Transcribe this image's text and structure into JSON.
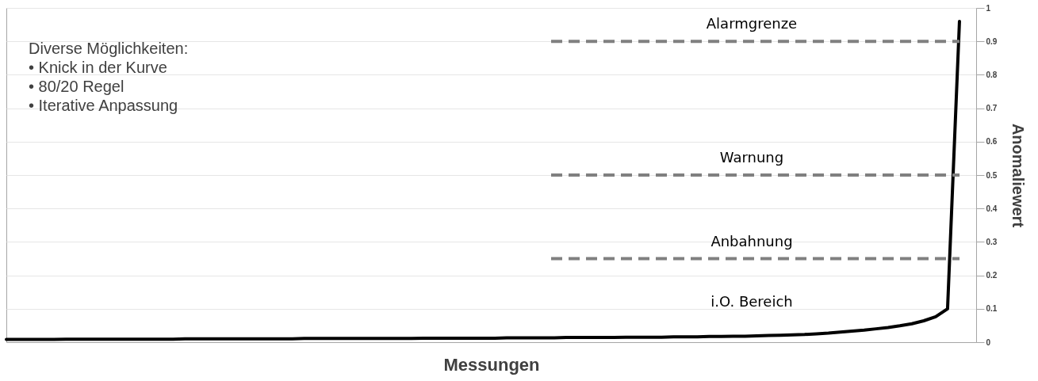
{
  "chart_data": {
    "type": "line",
    "xlabel": "Messungen",
    "ylabel": "Anomaliewert",
    "categories": [
      null,
      null,
      null,
      null,
      null,
      null,
      null,
      null,
      null,
      null,
      null,
      null,
      null,
      null,
      null,
      null,
      null,
      null,
      null,
      null,
      null,
      null,
      null,
      null,
      null,
      null,
      null,
      null,
      null,
      null,
      null,
      null,
      null,
      null,
      null,
      null,
      null,
      null,
      null,
      null,
      null,
      null,
      null,
      null,
      null,
      null,
      null,
      null,
      null,
      null,
      null,
      null,
      null,
      null,
      null,
      null,
      null,
      null,
      null,
      null,
      null,
      null,
      null,
      null,
      null,
      null,
      null,
      null,
      null,
      null,
      null,
      null,
      null,
      null,
      null,
      null,
      null,
      null,
      null,
      null,
      null
    ],
    "series": [
      {
        "color": "#000000",
        "values": [
          0.008,
          0.008,
          0.008,
          0.008,
          0.008,
          0.009,
          0.009,
          0.009,
          0.009,
          0.009,
          0.009,
          0.009,
          0.009,
          0.009,
          0.009,
          0.01,
          0.01,
          0.01,
          0.01,
          0.01,
          0.01,
          0.01,
          0.01,
          0.01,
          0.01,
          0.011,
          0.011,
          0.011,
          0.011,
          0.011,
          0.011,
          0.011,
          0.011,
          0.011,
          0.011,
          0.012,
          0.012,
          0.012,
          0.012,
          0.012,
          0.012,
          0.012,
          0.013,
          0.013,
          0.013,
          0.013,
          0.013,
          0.014,
          0.014,
          0.014,
          0.014,
          0.014,
          0.015,
          0.015,
          0.015,
          0.015,
          0.016,
          0.016,
          0.016,
          0.017,
          0.017,
          0.018,
          0.018,
          0.019,
          0.02,
          0.021,
          0.022,
          0.023,
          0.025,
          0.027,
          0.03,
          0.033,
          0.036,
          0.04,
          0.044,
          0.049,
          0.055,
          0.064,
          0.076,
          0.1,
          0.96
        ]
      }
    ],
    "ylim": [
      0,
      1
    ],
    "yticks": [
      0,
      0.1,
      0.2,
      0.3,
      0.4,
      0.5,
      0.6,
      0.7,
      0.8,
      0.9,
      1
    ],
    "grid": "y",
    "tick_labels": "y",
    "marker": "none",
    "line_style": "solid",
    "ref_lines": [
      {
        "axis": "y",
        "value": 0.9,
        "label": "Alarmgrenze",
        "color": "#808080",
        "line_style": "dashed"
      },
      {
        "axis": "y",
        "value": 0.5,
        "label": "Warnung",
        "color": "#808080",
        "line_style": "dashed"
      },
      {
        "axis": "y",
        "value": 0.25,
        "label": "Anbahnung",
        "color": "#808080",
        "line_style": "dashed"
      }
    ],
    "annotations": [
      "Diverse Möglichkeiten:",
      "•   Knick in der Kurve",
      "•   80/20 Regel",
      "•   Iterative Anpassung",
      "i.O. Bereich"
    ]
  }
}
